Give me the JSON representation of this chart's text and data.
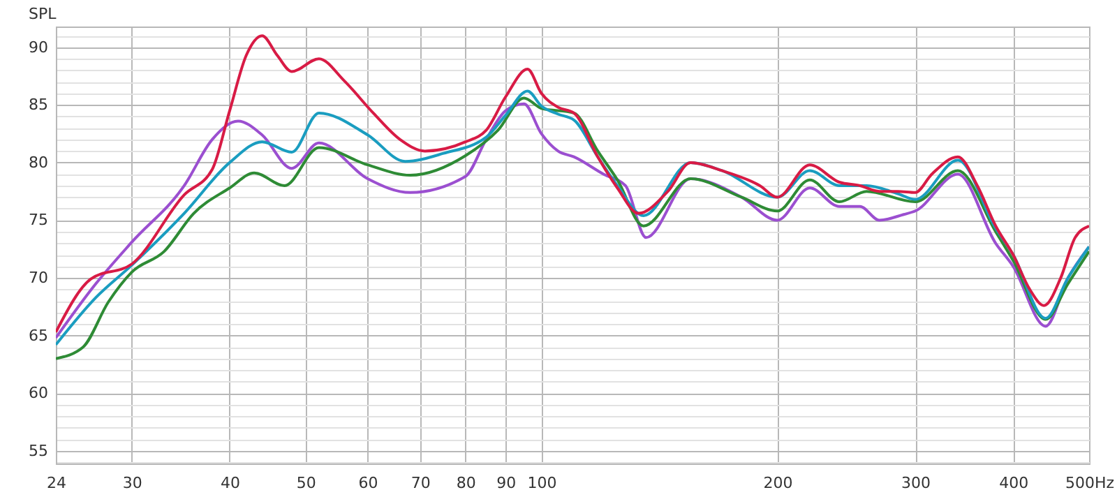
{
  "chart_data": {
    "type": "line",
    "ylabel": "SPL",
    "log": "x",
    "grid": true,
    "xlim": [
      24,
      500
    ],
    "ylim": [
      53.9,
      91.8
    ],
    "xticks": [
      24,
      30,
      40,
      50,
      60,
      70,
      80,
      90,
      100,
      200,
      300,
      400,
      {
        "value": 500,
        "label": "500Hz"
      }
    ],
    "yticks": [
      {
        "value": 54,
        "label": null
      },
      55,
      {
        "value": 56,
        "label": null
      },
      {
        "value": 57,
        "label": null
      },
      {
        "value": 58,
        "label": null
      },
      {
        "value": 59,
        "label": null
      },
      60,
      {
        "value": 61,
        "label": null
      },
      {
        "value": 62,
        "label": null
      },
      {
        "value": 63,
        "label": null
      },
      {
        "value": 64,
        "label": null
      },
      65,
      {
        "value": 66,
        "label": null
      },
      {
        "value": 67,
        "label": null
      },
      {
        "value": 68,
        "label": null
      },
      {
        "value": 69,
        "label": null
      },
      70,
      {
        "value": 71,
        "label": null
      },
      {
        "value": 72,
        "label": null
      },
      {
        "value": 73,
        "label": null
      },
      {
        "value": 74,
        "label": null
      },
      75,
      {
        "value": 76,
        "label": null
      },
      {
        "value": 77,
        "label": null
      },
      {
        "value": 78,
        "label": null
      },
      {
        "value": 79,
        "label": null
      },
      80,
      {
        "value": 81,
        "label": null
      },
      {
        "value": 82,
        "label": null
      },
      {
        "value": 83,
        "label": null
      },
      {
        "value": 84,
        "label": null
      },
      85,
      {
        "value": 86,
        "label": null
      },
      {
        "value": 87,
        "label": null
      },
      {
        "value": 88,
        "label": null
      },
      {
        "value": 89,
        "label": null
      },
      90,
      {
        "value": 91,
        "label": null
      }
    ],
    "line_style": "solid",
    "marker": "none",
    "series": [
      {
        "color": "#9b4fd0",
        "x": [
          24,
          27,
          30,
          35,
          38,
          41,
          44,
          48,
          52,
          60,
          68,
          80,
          85,
          90,
          95,
          100,
          105,
          110,
          120,
          128,
          136,
          155,
          180,
          200,
          220,
          240,
          255,
          270,
          290,
          300,
          340,
          380,
          400,
          440,
          470,
          500
        ],
        "values": [
          64.8,
          69.5,
          73.1,
          78.0,
          82.0,
          83.6,
          82.4,
          79.5,
          81.7,
          78.6,
          77.4,
          78.8,
          82.0,
          84.5,
          85.1,
          82.5,
          81.0,
          80.5,
          79.0,
          78.0,
          73.5,
          78.6,
          77.0,
          75.0,
          77.8,
          76.2,
          76.2,
          75.0,
          75.5,
          75.8,
          79.0,
          73.0,
          71.0,
          65.8,
          70.0,
          72.7
        ]
      },
      {
        "color": "#2e8b35",
        "x": [
          24,
          26,
          28,
          30,
          33,
          36,
          40,
          43,
          47,
          52,
          60,
          68,
          80,
          88,
          95,
          100,
          110,
          118,
          125,
          135,
          155,
          180,
          200,
          220,
          240,
          260,
          300,
          340,
          380,
          400,
          440,
          470,
          500
        ],
        "values": [
          63.0,
          64.0,
          67.9,
          70.5,
          72.3,
          75.6,
          77.8,
          79.1,
          78.0,
          81.3,
          79.8,
          78.9,
          80.6,
          82.8,
          85.6,
          84.7,
          84.3,
          81.0,
          78.5,
          74.5,
          78.6,
          77.0,
          75.8,
          78.5,
          76.6,
          77.5,
          76.6,
          79.3,
          74.0,
          71.5,
          66.4,
          69.5,
          72.3
        ]
      },
      {
        "color": "#1a9dc0",
        "x": [
          24,
          27,
          30,
          35,
          40,
          44,
          48,
          52,
          60,
          67,
          75,
          85,
          90,
          96,
          100,
          105,
          110,
          118,
          125,
          135,
          155,
          170,
          200,
          220,
          240,
          260,
          285,
          300,
          340,
          380,
          400,
          440,
          470,
          500
        ],
        "values": [
          64.2,
          68.3,
          71.1,
          75.6,
          80.0,
          81.8,
          80.9,
          84.3,
          82.4,
          80.1,
          80.8,
          82.2,
          84.1,
          86.2,
          84.9,
          84.2,
          83.7,
          80.5,
          78.0,
          75.4,
          80.0,
          79.3,
          77.0,
          79.3,
          78.0,
          78.0,
          77.3,
          76.8,
          80.2,
          74.3,
          72.0,
          66.5,
          70.0,
          72.7
        ]
      },
      {
        "color": "#d81b45",
        "x": [
          24,
          26.6,
          30,
          35,
          38,
          40,
          42,
          44,
          46,
          48,
          52,
          56,
          61,
          66,
          71,
          80,
          85,
          90,
          96,
          100,
          105,
          110,
          118,
          125,
          133,
          145,
          155,
          170,
          190,
          200,
          220,
          240,
          255,
          270,
          285,
          300,
          315,
          340,
          360,
          380,
          400,
          420,
          438,
          460,
          480,
          500
        ],
        "values": [
          65.3,
          69.9,
          71.2,
          77.2,
          79.4,
          84.5,
          89.3,
          91.0,
          89.3,
          87.9,
          89.0,
          87.1,
          84.3,
          82.0,
          81.0,
          81.8,
          82.8,
          85.7,
          88.1,
          86.0,
          84.8,
          84.3,
          80.5,
          77.8,
          75.6,
          77.5,
          80.0,
          79.3,
          78.0,
          77.0,
          79.8,
          78.3,
          78.0,
          77.5,
          77.5,
          77.4,
          79.0,
          80.5,
          78.0,
          74.5,
          72.0,
          69.0,
          67.6,
          70.0,
          73.5,
          74.5
        ]
      }
    ]
  }
}
